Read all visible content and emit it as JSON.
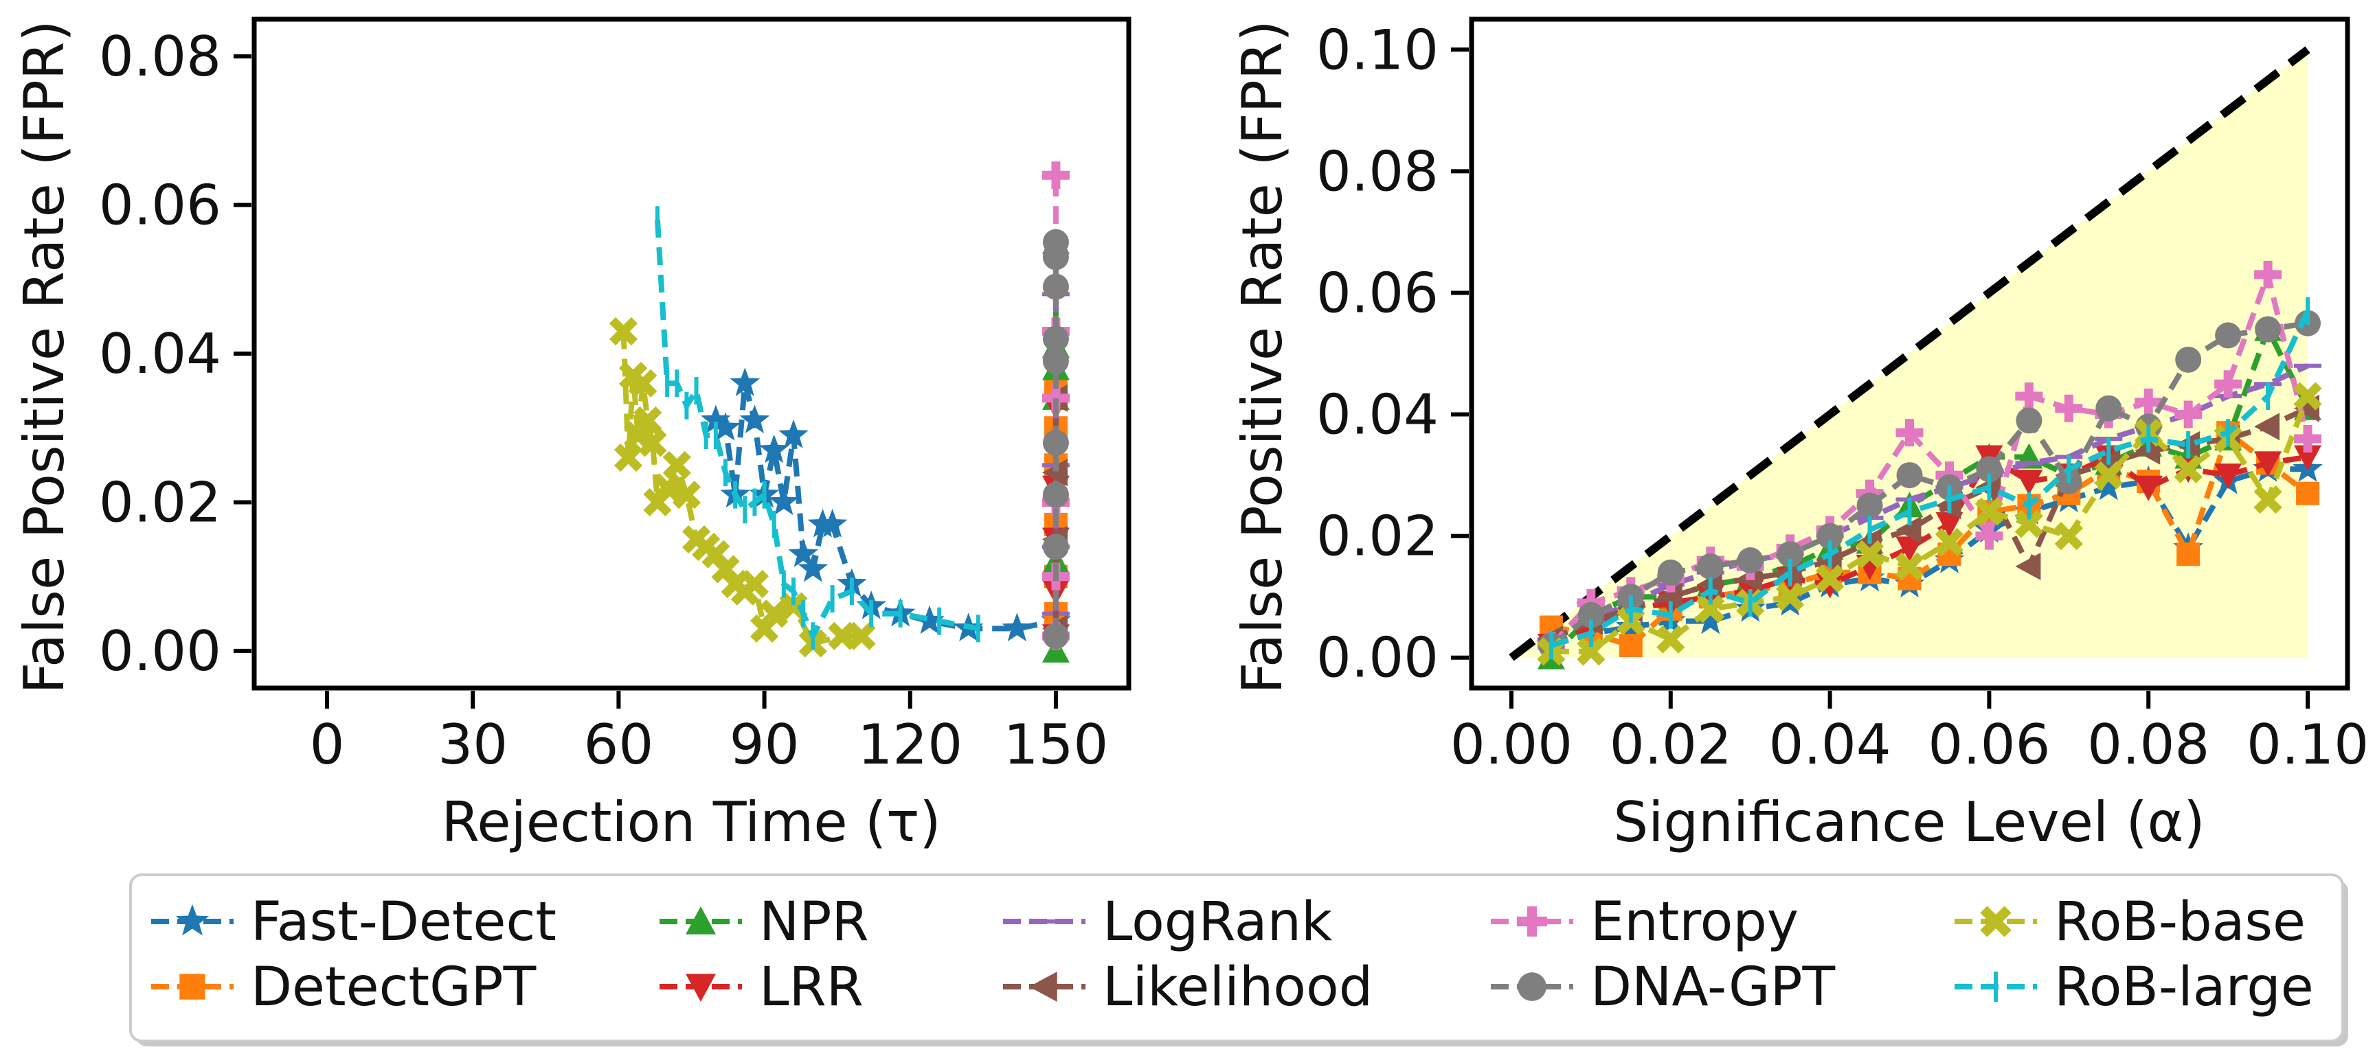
{
  "chart_data": [
    {
      "id": "left",
      "type": "line",
      "xlabel": "Rejection Time (τ)",
      "ylabel": "False Positive Rate (FPR)",
      "xlim": [
        -15,
        165
      ],
      "ylim": [
        -0.005,
        0.085
      ],
      "xticks": [
        0,
        30,
        60,
        90,
        120,
        150
      ],
      "yticks": [
        0.0,
        0.02,
        0.04,
        0.06,
        0.08
      ],
      "ytick_labels": [
        "0.00",
        "0.02",
        "0.04",
        "0.06",
        "0.08"
      ],
      "series": [
        {
          "name": "Fast-Detect",
          "x": [
            80,
            82,
            84,
            86,
            88,
            90,
            92,
            94,
            96,
            98,
            100,
            102,
            104,
            108,
            112,
            118,
            124,
            132,
            142,
            150
          ],
          "y": [
            0.031,
            0.03,
            0.021,
            0.036,
            0.031,
            0.021,
            0.027,
            0.02,
            0.029,
            0.013,
            0.011,
            0.017,
            0.017,
            0.009,
            0.006,
            0.005,
            0.004,
            0.003,
            0.003,
            0.004
          ]
        },
        {
          "name": "DetectGPT",
          "x": [
            150,
            150,
            150,
            150,
            150,
            150
          ],
          "y": [
            0.005,
            0.01,
            0.017,
            0.025,
            0.03,
            0.035
          ]
        },
        {
          "name": "NPR",
          "x": [
            150,
            150,
            150,
            150,
            150,
            150,
            150
          ],
          "y": [
            0.0,
            0.012,
            0.022,
            0.034,
            0.038,
            0.041,
            0.055
          ]
        },
        {
          "name": "LRR",
          "x": [
            150,
            150,
            150,
            150,
            150
          ],
          "y": [
            0.002,
            0.008,
            0.015,
            0.022,
            0.033
          ]
        },
        {
          "name": "LogRank",
          "x": [
            150,
            150,
            150,
            150,
            150
          ],
          "y": [
            0.005,
            0.014,
            0.025,
            0.034,
            0.048
          ]
        },
        {
          "name": "Likelihood",
          "x": [
            150,
            150,
            150,
            150
          ],
          "y": [
            0.003,
            0.015,
            0.024,
            0.034
          ]
        },
        {
          "name": "Entropy",
          "x": [
            150,
            150,
            150,
            150,
            150,
            150
          ],
          "y": [
            0.002,
            0.01,
            0.02,
            0.034,
            0.043,
            0.064
          ]
        },
        {
          "name": "DNA-GPT",
          "x": [
            150,
            150,
            150,
            150,
            150,
            150,
            150,
            150,
            150
          ],
          "y": [
            0.002,
            0.014,
            0.021,
            0.028,
            0.039,
            0.042,
            0.049,
            0.053,
            0.055
          ]
        },
        {
          "name": "RoB-base",
          "x": [
            61,
            62,
            63,
            64,
            65,
            66,
            67,
            68,
            70,
            72,
            74,
            76,
            78,
            80,
            82,
            84,
            86,
            88,
            90,
            92,
            96,
            100,
            106,
            110
          ],
          "y": [
            0.043,
            0.026,
            0.037,
            0.029,
            0.036,
            0.031,
            0.028,
            0.02,
            0.022,
            0.025,
            0.021,
            0.015,
            0.014,
            0.013,
            0.011,
            0.009,
            0.008,
            0.009,
            0.003,
            0.005,
            0.006,
            0.001,
            0.002,
            0.002
          ]
        },
        {
          "name": "RoB-large",
          "x": [
            68,
            70,
            72,
            74,
            76,
            78,
            80,
            82,
            84,
            86,
            88,
            90,
            92,
            94,
            96,
            98,
            100,
            104,
            108,
            112,
            118,
            126,
            134
          ],
          "y": [
            0.058,
            0.036,
            0.036,
            0.033,
            0.035,
            0.029,
            0.029,
            0.024,
            0.021,
            0.019,
            0.02,
            0.021,
            0.017,
            0.009,
            0.008,
            0.005,
            0.002,
            0.007,
            0.008,
            0.005,
            0.005,
            0.004,
            0.003
          ]
        }
      ]
    },
    {
      "id": "right",
      "type": "line",
      "xlabel": "Significance Level (α)",
      "ylabel": "False Positive Rate (FPR)",
      "xlim": [
        -0.005,
        0.105
      ],
      "ylim": [
        -0.005,
        0.105
      ],
      "xticks": [
        0.0,
        0.02,
        0.04,
        0.06,
        0.08,
        0.1
      ],
      "xtick_labels": [
        "0.00",
        "0.02",
        "0.04",
        "0.06",
        "0.08",
        "0.10"
      ],
      "yticks": [
        0.0,
        0.02,
        0.04,
        0.06,
        0.08,
        0.1
      ],
      "ytick_labels": [
        "0.00",
        "0.02",
        "0.04",
        "0.06",
        "0.08",
        "0.10"
      ],
      "reference_line": {
        "x": [
          0,
          0.1
        ],
        "y": [
          0,
          0.1
        ],
        "style": "dashed"
      },
      "shaded_region": {
        "x": [
          0,
          0.1
        ],
        "y_upper": [
          0,
          0.1
        ],
        "y_lower": [
          0,
          0
        ]
      },
      "x": [
        0.005,
        0.01,
        0.015,
        0.02,
        0.025,
        0.03,
        0.035,
        0.04,
        0.045,
        0.05,
        0.055,
        0.06,
        0.065,
        0.07,
        0.075,
        0.08,
        0.085,
        0.09,
        0.095,
        0.1
      ],
      "series": [
        {
          "name": "Fast-Detect",
          "y": [
            0.002,
            0.004,
            0.005,
            0.006,
            0.006,
            0.008,
            0.009,
            0.012,
            0.013,
            0.012,
            0.016,
            0.021,
            0.024,
            0.026,
            0.028,
            0.029,
            0.018,
            0.029,
            0.031,
            0.031
          ]
        },
        {
          "name": "DetectGPT",
          "y": [
            0.005,
            0.004,
            0.002,
            0.008,
            0.01,
            0.011,
            0.012,
            0.014,
            0.014,
            0.013,
            0.017,
            0.024,
            0.025,
            0.027,
            0.031,
            0.029,
            0.017,
            0.037,
            0.032,
            0.027
          ]
        },
        {
          "name": "NPR",
          "y": [
            0.0,
            0.007,
            0.01,
            0.01,
            0.012,
            0.013,
            0.015,
            0.018,
            0.019,
            0.025,
            0.029,
            0.033,
            0.033,
            0.03,
            0.032,
            0.035,
            0.033,
            0.036,
            0.054,
            0.041
          ]
        },
        {
          "name": "LRR",
          "y": [
            0.002,
            0.005,
            0.008,
            0.009,
            0.01,
            0.011,
            0.013,
            0.012,
            0.015,
            0.018,
            0.022,
            0.033,
            0.029,
            0.03,
            0.033,
            0.028,
            0.031,
            0.03,
            0.032,
            0.033
          ]
        },
        {
          "name": "LogRank",
          "y": [
            0.003,
            0.006,
            0.009,
            0.012,
            0.014,
            0.016,
            0.017,
            0.02,
            0.023,
            0.026,
            0.028,
            0.03,
            0.032,
            0.033,
            0.036,
            0.038,
            0.04,
            0.043,
            0.045,
            0.048
          ]
        },
        {
          "name": "Likelihood",
          "y": [
            0.003,
            0.006,
            0.008,
            0.01,
            0.012,
            0.013,
            0.014,
            0.016,
            0.019,
            0.021,
            0.025,
            0.028,
            0.015,
            0.03,
            0.032,
            0.034,
            0.035,
            0.036,
            0.038,
            0.041
          ]
        },
        {
          "name": "Entropy",
          "y": [
            0.002,
            0.009,
            0.011,
            0.013,
            0.016,
            0.015,
            0.018,
            0.021,
            0.027,
            0.037,
            0.03,
            0.02,
            0.043,
            0.041,
            0.04,
            0.042,
            0.04,
            0.045,
            0.063,
            0.036
          ]
        },
        {
          "name": "DNA-GPT",
          "y": [
            0.002,
            0.007,
            0.01,
            0.014,
            0.015,
            0.016,
            0.017,
            0.02,
            0.025,
            0.03,
            0.028,
            0.031,
            0.039,
            0.029,
            0.041,
            0.038,
            0.049,
            0.053,
            0.054,
            0.055
          ]
        },
        {
          "name": "RoB-base",
          "y": [
            0.001,
            0.001,
            0.006,
            0.003,
            0.008,
            0.009,
            0.01,
            0.013,
            0.017,
            0.015,
            0.019,
            0.024,
            0.022,
            0.02,
            0.03,
            0.037,
            0.031,
            0.036,
            0.026,
            0.043
          ]
        },
        {
          "name": "RoB-large",
          "y": [
            0.002,
            0.004,
            0.008,
            0.007,
            0.011,
            0.009,
            0.014,
            0.017,
            0.021,
            0.024,
            0.026,
            0.028,
            0.025,
            0.031,
            0.034,
            0.036,
            0.035,
            0.037,
            0.043,
            0.057
          ]
        }
      ]
    }
  ],
  "legend": {
    "placement": "bottom",
    "entries": [
      {
        "name": "Fast-Detect",
        "color": "#1f77b4",
        "marker": "star",
        "dash": "dash"
      },
      {
        "name": "DetectGPT",
        "color": "#ff7f0e",
        "marker": "square",
        "dash": "dash"
      },
      {
        "name": "NPR",
        "color": "#2ca02c",
        "marker": "triangle-up",
        "dash": "dash"
      },
      {
        "name": "LRR",
        "color": "#d62728",
        "marker": "triangle-down",
        "dash": "dash"
      },
      {
        "name": "LogRank",
        "color": "#9467bd",
        "marker": "hline",
        "dash": "dash"
      },
      {
        "name": "Likelihood",
        "color": "#8c564b",
        "marker": "triangle-left",
        "dash": "dash"
      },
      {
        "name": "Entropy",
        "color": "#e377c2",
        "marker": "plus",
        "dash": "dash"
      },
      {
        "name": "DNA-GPT",
        "color": "#7f7f7f",
        "marker": "circle",
        "dash": "dash"
      },
      {
        "name": "RoB-base",
        "color": "#bcbd22",
        "marker": "x",
        "dash": "dash"
      },
      {
        "name": "RoB-large",
        "color": "#17becf",
        "marker": "vline",
        "dash": "dash"
      }
    ]
  },
  "colors": {
    "shade": "#ffffc8",
    "reference_line": "#000000",
    "axis": "#000000"
  }
}
